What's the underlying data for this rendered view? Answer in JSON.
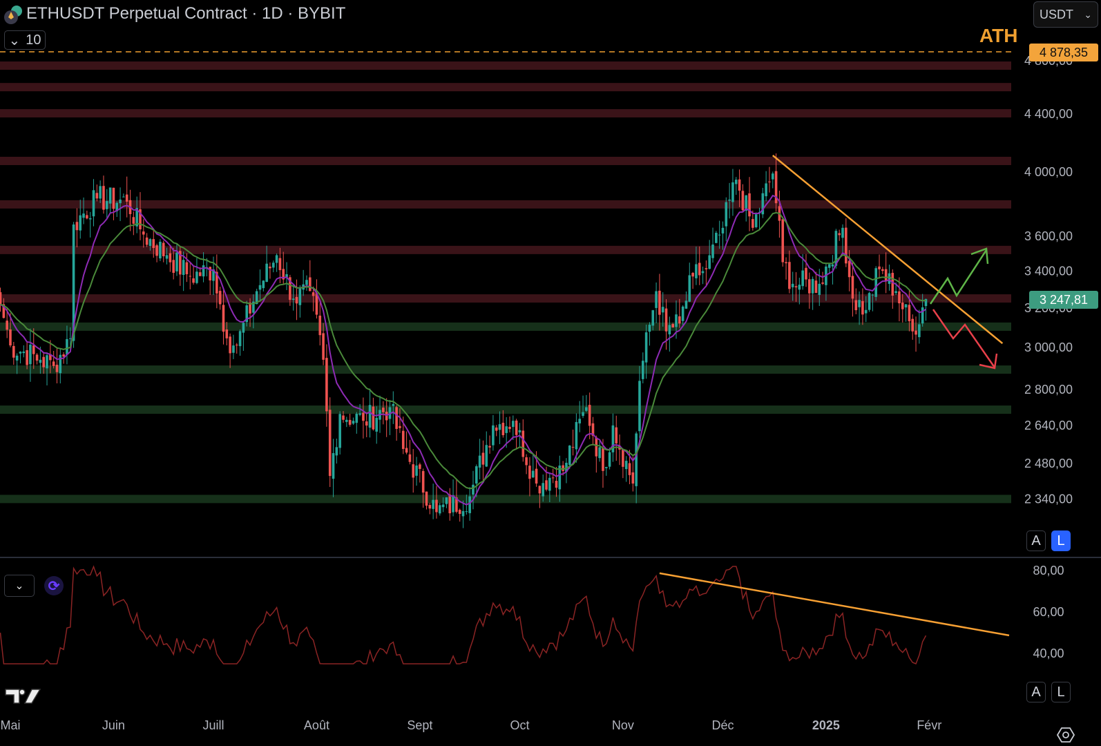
{
  "header": {
    "title": "ETHUSDT Perpetual Contract · 1D · BYBIT",
    "collapse_count": "10",
    "currency": "USDT",
    "ath_label": "ATH",
    "ath_price": "4 878,35",
    "last_price": "3 247,81"
  },
  "scale_buttons": {
    "auto": "A",
    "log": "L",
    "log_active": true,
    "rsi_log_active": false
  },
  "colors": {
    "up": "#26a69a",
    "down": "#ef5350",
    "ema_fast": "#8e2bb5",
    "ema_slow": "#4a8a3a",
    "trend": "#f7a033",
    "rsi": "#8b2424",
    "res_zone": "#3a1318",
    "sup_zone": "#16301a"
  },
  "chart_data": {
    "type": "candlestick",
    "title": "ETHUSDT Perpetual Contract · 1D · BYBIT",
    "yscale": "log",
    "ylim": [
      2230,
      4950
    ],
    "y_ticks": [
      {
        "v": 4800,
        "label": "4 800,00"
      },
      {
        "v": 4400,
        "label": "4 400,00"
      },
      {
        "v": 4000,
        "label": "4 000,00"
      },
      {
        "v": 3600,
        "label": "3 600,00"
      },
      {
        "v": 3400,
        "label": "3 400,00"
      },
      {
        "v": 3200,
        "label": "3 200,00"
      },
      {
        "v": 3000,
        "label": "3 000,00"
      },
      {
        "v": 2800,
        "label": "2 800,00"
      },
      {
        "v": 2640,
        "label": "2 640,00"
      },
      {
        "v": 2480,
        "label": "2 480,00"
      },
      {
        "v": 2340,
        "label": "2 340,00"
      }
    ],
    "x_ticks": [
      {
        "date": "2024-05-01",
        "label": "Mai"
      },
      {
        "date": "2024-06-01",
        "label": "Juin"
      },
      {
        "date": "2024-07-01",
        "label": "Juill"
      },
      {
        "date": "2024-08-01",
        "label": "Août"
      },
      {
        "date": "2024-09-01",
        "label": "Sept"
      },
      {
        "date": "2024-10-01",
        "label": "Oct"
      },
      {
        "date": "2024-11-01",
        "label": "Nov"
      },
      {
        "date": "2024-12-01",
        "label": "Déc"
      },
      {
        "date": "2025-01-01",
        "label": "2025",
        "bold": true
      },
      {
        "date": "2025-02-01",
        "label": "Févr"
      }
    ],
    "close_anchors": [
      [
        "2024-04-28",
        3220
      ],
      [
        "2024-05-01",
        3010
      ],
      [
        "2024-05-10",
        2940
      ],
      [
        "2024-05-14",
        2910
      ],
      [
        "2024-05-19",
        3045
      ],
      [
        "2024-05-20",
        3670
      ],
      [
        "2024-05-27",
        3830
      ],
      [
        "2024-06-05",
        3810
      ],
      [
        "2024-06-10",
        3610
      ],
      [
        "2024-06-17",
        3490
      ],
      [
        "2024-06-24",
        3370
      ],
      [
        "2024-07-01",
        3410
      ],
      [
        "2024-07-05",
        3045
      ],
      [
        "2024-07-08",
        3010
      ],
      [
        "2024-07-14",
        3290
      ],
      [
        "2024-07-20",
        3490
      ],
      [
        "2024-07-25",
        3250
      ],
      [
        "2024-07-30",
        3290
      ],
      [
        "2024-08-03",
        2940
      ],
      [
        "2024-08-05",
        2430
      ],
      [
        "2024-08-08",
        2690
      ],
      [
        "2024-08-15",
        2660
      ],
      [
        "2024-08-23",
        2720
      ],
      [
        "2024-08-27",
        2540
      ],
      [
        "2024-09-06",
        2290
      ],
      [
        "2024-09-16",
        2350
      ],
      [
        "2024-09-23",
        2640
      ],
      [
        "2024-09-29",
        2660
      ],
      [
        "2024-10-06",
        2400
      ],
      [
        "2024-10-14",
        2450
      ],
      [
        "2024-10-21",
        2720
      ],
      [
        "2024-10-26",
        2450
      ],
      [
        "2024-10-29",
        2640
      ],
      [
        "2024-11-04",
        2400
      ],
      [
        "2024-11-06",
        2840
      ],
      [
        "2024-11-11",
        3290
      ],
      [
        "2024-11-14",
        3080
      ],
      [
        "2024-11-18",
        3120
      ],
      [
        "2024-11-22",
        3370
      ],
      [
        "2024-11-26",
        3410
      ],
      [
        "2024-12-01",
        3650
      ],
      [
        "2024-12-05",
        3950
      ],
      [
        "2024-12-10",
        3650
      ],
      [
        "2024-12-16",
        3990
      ],
      [
        "2024-12-19",
        3450
      ],
      [
        "2024-12-22",
        3330
      ],
      [
        "2024-12-30",
        3330
      ],
      [
        "2025-01-06",
        3650
      ],
      [
        "2025-01-09",
        3250
      ],
      [
        "2025-01-13",
        3190
      ],
      [
        "2025-01-17",
        3410
      ],
      [
        "2025-01-22",
        3290
      ],
      [
        "2025-01-27",
        3080
      ],
      [
        "2025-01-31",
        3248
      ]
    ],
    "moving_averages": [
      {
        "name": "EMA fast",
        "period": 10
      },
      {
        "name": "EMA slow",
        "period": 20
      }
    ],
    "ath_level": 4878.35,
    "resistance_zones": [
      4762,
      4597,
      4404,
      4073,
      3793,
      3520,
      3251
    ],
    "support_zones": [
      3104,
      2893,
      2709,
      2340
    ],
    "trendline": {
      "from": [
        "2024-12-16",
        4110
      ],
      "to": [
        "2025-02-23",
        3020
      ]
    },
    "rsi": {
      "period": 14,
      "ylim": [
        35,
        82
      ],
      "y_ticks": [
        {
          "v": 80,
          "label": "80,00"
        },
        {
          "v": 60,
          "label": "60,00"
        },
        {
          "v": 40,
          "label": "40,00"
        }
      ],
      "trendline": {
        "from": [
          "2024-11-12",
          78.7
        ],
        "to": [
          "2025-02-25",
          48.7
        ]
      }
    }
  }
}
